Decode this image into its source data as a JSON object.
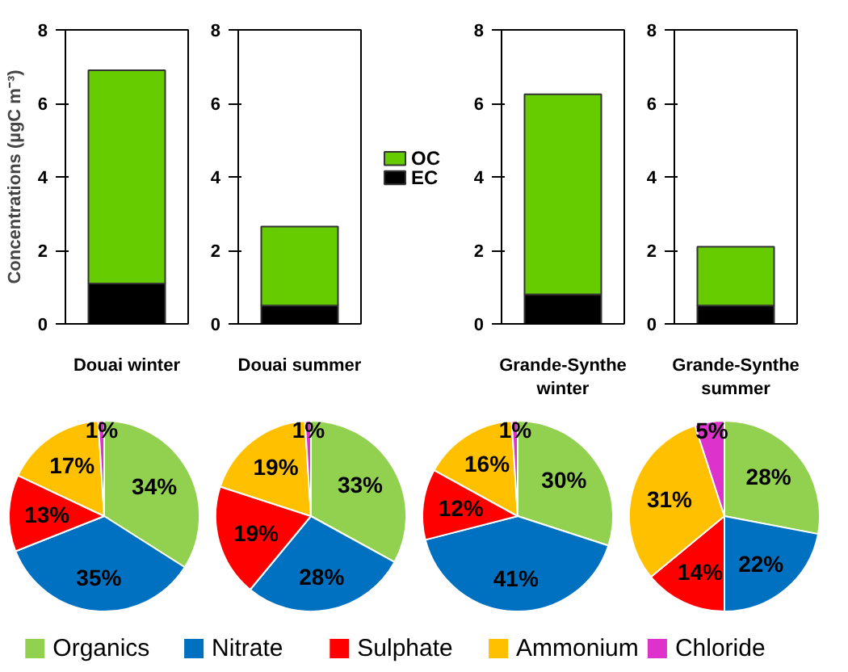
{
  "chart_data": [
    {
      "type": "bar",
      "stacked": true,
      "categories": [
        "Douai winter"
      ],
      "ylabel": "Concentrations (µgC m⁻³)",
      "ylim": [
        0,
        8
      ],
      "yticks": [
        0,
        2,
        4,
        6,
        8
      ],
      "series": [
        {
          "color": "#000000",
          "values": [
            1.1
          ]
        },
        {
          "color": "#66cc00",
          "values": [
            5.8
          ]
        }
      ]
    },
    {
      "type": "bar",
      "stacked": true,
      "categories": [
        "Douai summer"
      ],
      "ylim": [
        0,
        8
      ],
      "yticks": [
        0,
        2,
        4,
        6,
        8
      ],
      "legend": "right",
      "series": [
        {
          "name": "EC",
          "color": "#000000",
          "values": [
            0.5
          ]
        },
        {
          "name": "OC",
          "color": "#66cc00",
          "values": [
            2.15
          ]
        }
      ]
    },
    {
      "type": "bar",
      "stacked": true,
      "categories": [
        "Grande-Synthe winter"
      ],
      "ylim": [
        0,
        8
      ],
      "yticks": [
        0,
        2,
        4,
        6,
        8
      ],
      "series": [
        {
          "color": "#000000",
          "values": [
            0.8
          ]
        },
        {
          "color": "#66cc00",
          "values": [
            5.45
          ]
        }
      ]
    },
    {
      "type": "bar",
      "stacked": true,
      "categories": [
        "Grande-Synthe summer"
      ],
      "ylim": [
        0,
        8
      ],
      "yticks": [
        0,
        2,
        4,
        6,
        8
      ],
      "series": [
        {
          "color": "#000000",
          "values": [
            0.5
          ]
        },
        {
          "color": "#66cc00",
          "values": [
            1.6
          ]
        }
      ]
    },
    {
      "type": "pie",
      "categories": [
        "Organics",
        "Nitrate",
        "Sulphate",
        "Ammonium",
        "Chloride"
      ],
      "values": [
        34,
        35,
        13,
        17,
        1
      ],
      "value_labels": [
        "34%",
        "35%",
        "13%",
        "17%",
        "1%"
      ],
      "colors": [
        "#92d050",
        "#0070c0",
        "#ff0000",
        "#ffc000",
        "#dd33cc"
      ],
      "legend": "bottom"
    },
    {
      "type": "pie",
      "categories": [
        null,
        null,
        null,
        null,
        null
      ],
      "values": [
        33,
        28,
        19,
        19,
        1
      ],
      "value_labels": [
        "33%",
        "28%",
        "19%",
        "19%",
        "1%"
      ],
      "colors": [
        "#92d050",
        "#0070c0",
        "#ff0000",
        "#ffc000",
        "#dd33cc"
      ]
    },
    {
      "type": "pie",
      "categories": [
        null,
        null,
        null,
        null,
        null
      ],
      "values": [
        30,
        41,
        12,
        16,
        1
      ],
      "value_labels": [
        "30%",
        "41%",
        "12%",
        "16%",
        "1%"
      ],
      "colors": [
        "#92d050",
        "#0070c0",
        "#ff0000",
        "#ffc000",
        "#dd33cc"
      ]
    },
    {
      "type": "pie",
      "categories": [
        null,
        null,
        null,
        null,
        null
      ],
      "values": [
        28,
        22,
        14,
        31,
        5
      ],
      "value_labels": [
        "28%",
        "22%",
        "14%",
        "31%",
        "5%"
      ],
      "colors": [
        "#92d050",
        "#0070c0",
        "#ff0000",
        "#ffc000",
        "#dd33cc"
      ]
    }
  ]
}
